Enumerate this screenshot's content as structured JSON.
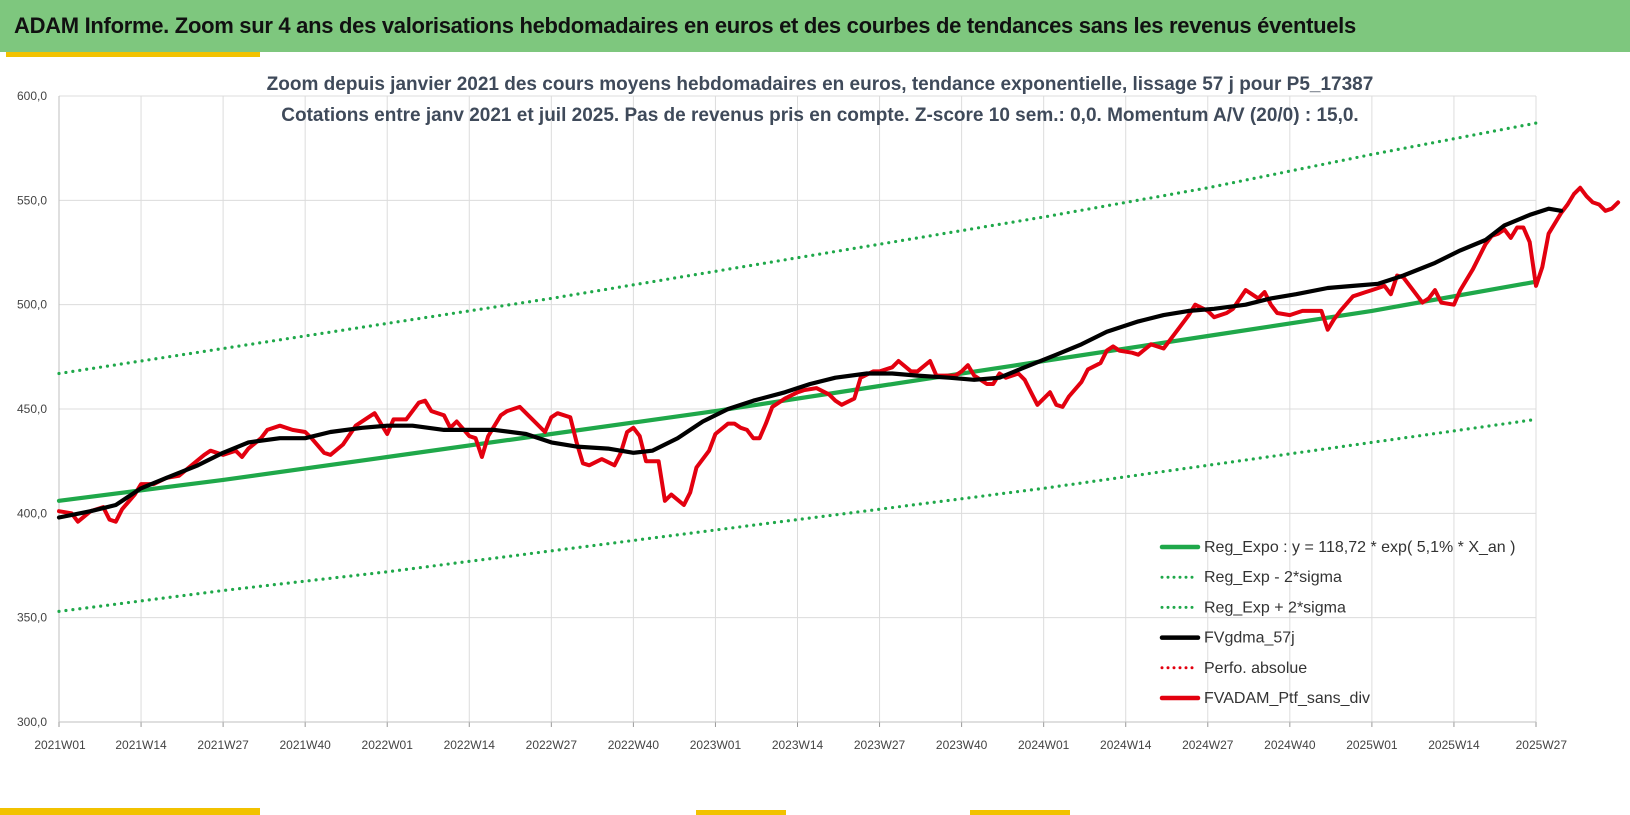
{
  "header": {
    "title": "ADAM Informe. Zoom sur 4 ans des valorisations hebdomadaires en euros et des courbes de tendances sans les revenus éventuels"
  },
  "colors": {
    "header_bg": "#7ec77e",
    "accent_yellow": "#f2c200",
    "trend_green": "#1fa84a",
    "moving_avg": "#000000",
    "portfolio_red": "#e3000f"
  },
  "chart_data": {
    "type": "line",
    "title": "Zoom depuis janvier 2021 des cours moyens hebdomadaires  en euros, tendance exponentielle, lissage 57 j pour P5_17387",
    "subtitle": "Cotations entre janv 2021 et juil 2025. Pas de revenus pris en compte. Z-score 10 sem.: 0,0. Momentum A/V (20/0) : 15,0.",
    "xlabel": "",
    "ylabel": "",
    "ylim": [
      300,
      600
    ],
    "yticks": [
      "300,0",
      "350,0",
      "400,0",
      "450,0",
      "500,0",
      "550,0",
      "600,0"
    ],
    "xticks": [
      "2021W01",
      "2021W14",
      "2021W27",
      "2021W40",
      "2022W01",
      "2022W14",
      "2022W27",
      "2022W40",
      "2023W01",
      "2023W14",
      "2023W27",
      "2023W40",
      "2024W01",
      "2024W14",
      "2024W27",
      "2024W40",
      "2025W01",
      "2025W14",
      "2025W27"
    ],
    "grid": true,
    "legend_position": "bottom-right",
    "series": [
      {
        "name": "Reg_Expo : y = 118,72 * exp( 5,1% *  X_an )",
        "style": "solid",
        "color": "#1fa84a",
        "points": [
          [
            0,
            406
          ],
          [
            26,
            416
          ],
          [
            52,
            427
          ],
          [
            78,
            438
          ],
          [
            104,
            449
          ],
          [
            130,
            461
          ],
          [
            156,
            473
          ],
          [
            182,
            485
          ],
          [
            208,
            497
          ],
          [
            234,
            511
          ]
        ]
      },
      {
        "name": "Reg_Exp - 2*sigma",
        "style": "dotted",
        "color": "#1fa84a",
        "points": [
          [
            0,
            353
          ],
          [
            26,
            363
          ],
          [
            52,
            372
          ],
          [
            78,
            382
          ],
          [
            104,
            392
          ],
          [
            130,
            402
          ],
          [
            156,
            412
          ],
          [
            182,
            423
          ],
          [
            208,
            434
          ],
          [
            234,
            445
          ]
        ]
      },
      {
        "name": "Reg_Exp + 2*sigma",
        "style": "dotted",
        "color": "#1fa84a",
        "points": [
          [
            0,
            467
          ],
          [
            26,
            479
          ],
          [
            52,
            491
          ],
          [
            78,
            503
          ],
          [
            104,
            516
          ],
          [
            130,
            529
          ],
          [
            156,
            542
          ],
          [
            182,
            556
          ],
          [
            208,
            572
          ],
          [
            234,
            587
          ]
        ]
      },
      {
        "name": "FVgdma_57j",
        "style": "solid",
        "color": "#000000",
        "points": [
          [
            0,
            398
          ],
          [
            5,
            401
          ],
          [
            9,
            404
          ],
          [
            13,
            412
          ],
          [
            17,
            417
          ],
          [
            22,
            423
          ],
          [
            26,
            429
          ],
          [
            30,
            434
          ],
          [
            35,
            436
          ],
          [
            39,
            436
          ],
          [
            43,
            439
          ],
          [
            48,
            441
          ],
          [
            52,
            442
          ],
          [
            56,
            442
          ],
          [
            61,
            440
          ],
          [
            65,
            440
          ],
          [
            69,
            440
          ],
          [
            74,
            438
          ],
          [
            78,
            434
          ],
          [
            82,
            432
          ],
          [
            87,
            431
          ],
          [
            91,
            429
          ],
          [
            94,
            430
          ],
          [
            98,
            436
          ],
          [
            102,
            444
          ],
          [
            106,
            450
          ],
          [
            110,
            454
          ],
          [
            115,
            458
          ],
          [
            119,
            462
          ],
          [
            123,
            465
          ],
          [
            128,
            467
          ],
          [
            132,
            467
          ],
          [
            136,
            466
          ],
          [
            141,
            465
          ],
          [
            145,
            464
          ],
          [
            149,
            465
          ],
          [
            153,
            470
          ],
          [
            158,
            476
          ],
          [
            162,
            481
          ],
          [
            166,
            487
          ],
          [
            171,
            492
          ],
          [
            175,
            495
          ],
          [
            179,
            497
          ],
          [
            183,
            498
          ],
          [
            188,
            500
          ],
          [
            192,
            503
          ],
          [
            196,
            505
          ],
          [
            201,
            508
          ],
          [
            205,
            509
          ],
          [
            209,
            510
          ],
          [
            213,
            514
          ],
          [
            218,
            520
          ],
          [
            222,
            526
          ],
          [
            226,
            531
          ],
          [
            229,
            538
          ],
          [
            233,
            543
          ],
          [
            236,
            546
          ],
          [
            238,
            545
          ]
        ]
      },
      {
        "name": "Perfo. absolue",
        "style": "dotted",
        "color": "#e3000f",
        "points": []
      },
      {
        "name": "FVADAM_Ptf_sans_div",
        "style": "solid",
        "color": "#e3000f",
        "points": [
          [
            0,
            401
          ],
          [
            2,
            400
          ],
          [
            3,
            396
          ],
          [
            5,
            401
          ],
          [
            7,
            403
          ],
          [
            8,
            397
          ],
          [
            9,
            396
          ],
          [
            10,
            402
          ],
          [
            12,
            409
          ],
          [
            13,
            414
          ],
          [
            15,
            414
          ],
          [
            17,
            417
          ],
          [
            19,
            418
          ],
          [
            21,
            423
          ],
          [
            23,
            428
          ],
          [
            24,
            430
          ],
          [
            26,
            428
          ],
          [
            28,
            430
          ],
          [
            29,
            427
          ],
          [
            30,
            431
          ],
          [
            32,
            436
          ],
          [
            33,
            440
          ],
          [
            35,
            442
          ],
          [
            37,
            440
          ],
          [
            39,
            439
          ],
          [
            40,
            436
          ],
          [
            42,
            429
          ],
          [
            43,
            428
          ],
          [
            45,
            433
          ],
          [
            47,
            442
          ],
          [
            49,
            446
          ],
          [
            50,
            448
          ],
          [
            51,
            443
          ],
          [
            52,
            438
          ],
          [
            53,
            445
          ],
          [
            55,
            445
          ],
          [
            57,
            453
          ],
          [
            58,
            454
          ],
          [
            59,
            449
          ],
          [
            61,
            447
          ],
          [
            62,
            441
          ],
          [
            63,
            444
          ],
          [
            65,
            437
          ],
          [
            66,
            436
          ],
          [
            67,
            427
          ],
          [
            68,
            437
          ],
          [
            70,
            447
          ],
          [
            71,
            449
          ],
          [
            73,
            451
          ],
          [
            75,
            445
          ],
          [
            77,
            439
          ],
          [
            78,
            446
          ],
          [
            79,
            448
          ],
          [
            81,
            446
          ],
          [
            82,
            434
          ],
          [
            83,
            424
          ],
          [
            84,
            423
          ],
          [
            86,
            426
          ],
          [
            88,
            423
          ],
          [
            89,
            429
          ],
          [
            90,
            439
          ],
          [
            91,
            441
          ],
          [
            92,
            437
          ],
          [
            93,
            425
          ],
          [
            95,
            425
          ],
          [
            96,
            406
          ],
          [
            97,
            409
          ],
          [
            99,
            404
          ],
          [
            100,
            410
          ],
          [
            101,
            422
          ],
          [
            103,
            430
          ],
          [
            104,
            438
          ],
          [
            106,
            443
          ],
          [
            107,
            443
          ],
          [
            108,
            441
          ],
          [
            109,
            440
          ],
          [
            110,
            436
          ],
          [
            111,
            436
          ],
          [
            112,
            443
          ],
          [
            113,
            451
          ],
          [
            115,
            455
          ],
          [
            117,
            458
          ],
          [
            118,
            459
          ],
          [
            120,
            460
          ],
          [
            122,
            457
          ],
          [
            123,
            454
          ],
          [
            124,
            452
          ],
          [
            126,
            455
          ],
          [
            127,
            465
          ],
          [
            129,
            468
          ],
          [
            130,
            468
          ],
          [
            132,
            470
          ],
          [
            133,
            473
          ],
          [
            135,
            468
          ],
          [
            136,
            468
          ],
          [
            138,
            473
          ],
          [
            139,
            466
          ],
          [
            140,
            466
          ],
          [
            142,
            466
          ],
          [
            143,
            468
          ],
          [
            144,
            471
          ],
          [
            145,
            466
          ],
          [
            147,
            462
          ],
          [
            148,
            462
          ],
          [
            149,
            467
          ],
          [
            150,
            465
          ],
          [
            152,
            467
          ],
          [
            153,
            464
          ],
          [
            154,
            458
          ],
          [
            155,
            452
          ],
          [
            157,
            458
          ],
          [
            158,
            452
          ],
          [
            159,
            451
          ],
          [
            160,
            456
          ],
          [
            162,
            463
          ],
          [
            163,
            469
          ],
          [
            165,
            472
          ],
          [
            166,
            478
          ],
          [
            167,
            480
          ],
          [
            168,
            478
          ],
          [
            170,
            477
          ],
          [
            171,
            476
          ],
          [
            173,
            481
          ],
          [
            175,
            479
          ],
          [
            177,
            487
          ],
          [
            179,
            495
          ],
          [
            180,
            500
          ],
          [
            182,
            497
          ],
          [
            183,
            494
          ],
          [
            185,
            496
          ],
          [
            186,
            498
          ],
          [
            188,
            507
          ],
          [
            190,
            503
          ],
          [
            191,
            506
          ],
          [
            192,
            500
          ],
          [
            193,
            496
          ],
          [
            195,
            495
          ],
          [
            196,
            496
          ],
          [
            197,
            497
          ],
          [
            199,
            497
          ],
          [
            200,
            497
          ],
          [
            201,
            488
          ],
          [
            202,
            493
          ],
          [
            203,
            497
          ],
          [
            205,
            504
          ],
          [
            207,
            506
          ],
          [
            208,
            507
          ],
          [
            210,
            509
          ],
          [
            211,
            505
          ],
          [
            212,
            514
          ],
          [
            213,
            513
          ],
          [
            215,
            505
          ],
          [
            216,
            501
          ],
          [
            217,
            503
          ],
          [
            218,
            507
          ],
          [
            219,
            501
          ],
          [
            221,
            500
          ],
          [
            222,
            507
          ],
          [
            224,
            517
          ],
          [
            225,
            523
          ],
          [
            226,
            529
          ],
          [
            227,
            533
          ],
          [
            228,
            534
          ],
          [
            229,
            536
          ],
          [
            230,
            532
          ],
          [
            231,
            537
          ],
          [
            232,
            537
          ],
          [
            233,
            530
          ],
          [
            234,
            509
          ],
          [
            235,
            518
          ],
          [
            236,
            534
          ],
          [
            238,
            544
          ],
          [
            239,
            548
          ],
          [
            240,
            553
          ],
          [
            241,
            556
          ],
          [
            242,
            552
          ],
          [
            243,
            549
          ],
          [
            244,
            548
          ],
          [
            245,
            545
          ],
          [
            246,
            546
          ],
          [
            247,
            549
          ]
        ]
      }
    ]
  }
}
